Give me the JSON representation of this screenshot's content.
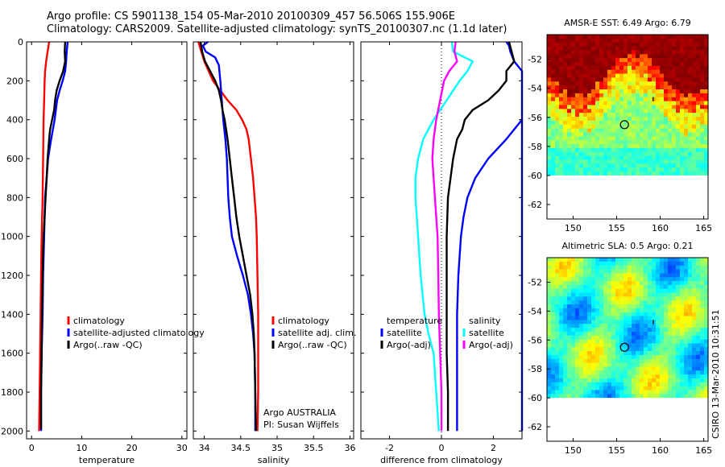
{
  "figure": {
    "title_line1": "Argo profile: CS 5901138_154 05-Mar-2010 20100309_457 56.506S 155.906E",
    "title_line2": "Climatology: CARS2009. Satellite-adjusted climatology: synTS_20100307.nc (1.1d later)",
    "stamp": "CSIRO 13-Mar-2010 10:31:51",
    "colors": {
      "red": "#ff0000",
      "blue": "#0000ff",
      "black": "#000000",
      "cyan": "#00ffff",
      "magenta": "#ff00ff"
    }
  },
  "chart_data": [
    {
      "id": "temperature",
      "type": "line",
      "xlabel": "temperature",
      "xlim": [
        -1,
        31
      ],
      "xticks": [
        0,
        10,
        20,
        30
      ],
      "ylim": [
        2040,
        0
      ],
      "yticks": [
        0,
        200,
        400,
        600,
        800,
        1000,
        1200,
        1400,
        1600,
        1800,
        2000
      ],
      "legend": {
        "position": "lower-right",
        "entries": [
          {
            "label": "climatology",
            "color": "red"
          },
          {
            "label": "satellite-adjusted climatology",
            "color": "blue"
          },
          {
            "label": "Argo(..raw -QC)",
            "color": "black"
          }
        ]
      },
      "series": [
        {
          "name": "climatology",
          "color": "red",
          "points": [
            [
              3.5,
              0
            ],
            [
              3.2,
              50
            ],
            [
              2.9,
              100
            ],
            [
              2.7,
              150
            ],
            [
              2.6,
              200
            ],
            [
              2.5,
              300
            ],
            [
              2.4,
              400
            ],
            [
              2.3,
              600
            ],
            [
              2.2,
              800
            ],
            [
              2.0,
              1000
            ],
            [
              1.9,
              1200
            ],
            [
              1.8,
              1400
            ],
            [
              1.7,
              1600
            ],
            [
              1.6,
              1800
            ],
            [
              1.5,
              2000
            ]
          ]
        },
        {
          "name": "satellite-adjusted climatology",
          "color": "blue",
          "points": [
            [
              7.2,
              0
            ],
            [
              7.0,
              50
            ],
            [
              6.9,
              100
            ],
            [
              6.7,
              150
            ],
            [
              6.2,
              200
            ],
            [
              5.6,
              250
            ],
            [
              5.1,
              300
            ],
            [
              4.6,
              400
            ],
            [
              3.9,
              500
            ],
            [
              3.3,
              600
            ],
            [
              3.0,
              700
            ],
            [
              2.7,
              800
            ],
            [
              2.5,
              1000
            ],
            [
              2.3,
              1200
            ],
            [
              2.2,
              1400
            ],
            [
              2.0,
              1600
            ],
            [
              1.9,
              1800
            ],
            [
              1.9,
              2000
            ]
          ]
        },
        {
          "name": "Argo(..raw -QC)",
          "color": "black",
          "points": [
            [
              6.7,
              0
            ],
            [
              6.6,
              50
            ],
            [
              6.7,
              100
            ],
            [
              6.3,
              150
            ],
            [
              5.6,
              200
            ],
            [
              5.0,
              250
            ],
            [
              4.7,
              300
            ],
            [
              4.5,
              350
            ],
            [
              4.1,
              400
            ],
            [
              3.7,
              450
            ],
            [
              3.5,
              500
            ],
            [
              3.2,
              600
            ],
            [
              3.0,
              700
            ],
            [
              2.8,
              800
            ],
            [
              2.6,
              900
            ],
            [
              2.4,
              1000
            ],
            [
              2.2,
              1200
            ],
            [
              2.1,
              1400
            ],
            [
              2.0,
              1600
            ],
            [
              1.9,
              1800
            ],
            [
              1.9,
              1990
            ]
          ]
        }
      ]
    },
    {
      "id": "salinity",
      "type": "line",
      "xlabel": "salinity",
      "xlim": [
        33.85,
        36.05
      ],
      "xticks": [
        34,
        34.5,
        35,
        35.5,
        36
      ],
      "ylim": [
        2040,
        0
      ],
      "legend": {
        "position": "lower-right",
        "entries": [
          {
            "label": "climatology",
            "color": "red"
          },
          {
            "label": "satellite adj. clim.",
            "color": "blue"
          },
          {
            "label": "Argo(..raw -QC)",
            "color": "black"
          }
        ]
      },
      "annotation_line1": "Argo AUSTRALIA",
      "annotation_line2": "PI: Susan Wijffels",
      "series": [
        {
          "name": "climatology",
          "color": "red",
          "points": [
            [
              33.92,
              0
            ],
            [
              33.96,
              50
            ],
            [
              34.0,
              100
            ],
            [
              34.06,
              150
            ],
            [
              34.12,
              200
            ],
            [
              34.22,
              250
            ],
            [
              34.32,
              300
            ],
            [
              34.44,
              350
            ],
            [
              34.52,
              400
            ],
            [
              34.58,
              450
            ],
            [
              34.61,
              500
            ],
            [
              34.64,
              600
            ],
            [
              34.67,
              700
            ],
            [
              34.69,
              800
            ],
            [
              34.71,
              900
            ],
            [
              34.72,
              1000
            ],
            [
              34.73,
              1200
            ],
            [
              34.74,
              1400
            ],
            [
              34.74,
              1600
            ],
            [
              34.74,
              1800
            ],
            [
              34.73,
              2000
            ]
          ]
        },
        {
          "name": "satellite adj. clim.",
          "color": "blue",
          "points": [
            [
              34.05,
              0
            ],
            [
              33.98,
              20
            ],
            [
              34.02,
              50
            ],
            [
              34.15,
              80
            ],
            [
              34.2,
              120
            ],
            [
              34.22,
              200
            ],
            [
              34.24,
              300
            ],
            [
              34.26,
              400
            ],
            [
              34.29,
              500
            ],
            [
              34.31,
              600
            ],
            [
              34.32,
              700
            ],
            [
              34.33,
              800
            ],
            [
              34.35,
              900
            ],
            [
              34.38,
              1000
            ],
            [
              34.45,
              1100
            ],
            [
              34.53,
              1200
            ],
            [
              34.6,
              1300
            ],
            [
              34.64,
              1400
            ],
            [
              34.67,
              1500
            ],
            [
              34.69,
              1600
            ],
            [
              34.7,
              1800
            ],
            [
              34.7,
              2000
            ]
          ]
        },
        {
          "name": "Argo(..raw -QC)",
          "color": "black",
          "points": [
            [
              33.95,
              0
            ],
            [
              33.97,
              50
            ],
            [
              34.01,
              100
            ],
            [
              34.08,
              150
            ],
            [
              34.15,
              200
            ],
            [
              34.2,
              250
            ],
            [
              34.23,
              300
            ],
            [
              34.25,
              350
            ],
            [
              34.28,
              400
            ],
            [
              34.3,
              450
            ],
            [
              34.32,
              500
            ],
            [
              34.35,
              600
            ],
            [
              34.38,
              700
            ],
            [
              34.41,
              800
            ],
            [
              34.44,
              900
            ],
            [
              34.48,
              1000
            ],
            [
              34.53,
              1100
            ],
            [
              34.58,
              1200
            ],
            [
              34.63,
              1300
            ],
            [
              34.66,
              1400
            ],
            [
              34.68,
              1500
            ],
            [
              34.69,
              1600
            ],
            [
              34.7,
              1800
            ],
            [
              34.71,
              2000
            ]
          ]
        }
      ]
    },
    {
      "id": "difference",
      "type": "line",
      "xlabel": "difference from climatology",
      "xlim": [
        -3.1,
        3.1
      ],
      "xticks": [
        -2,
        0,
        2
      ],
      "ylim": [
        2040,
        0
      ],
      "zero_line": "dotted",
      "legend": {
        "position": "lower-center",
        "group1_title": "temperature",
        "group2_title": "salinity",
        "entries": [
          {
            "label": "satellite",
            "color": "blue",
            "group": "temperature"
          },
          {
            "label": "Argo(-adj)",
            "color": "black",
            "group": "temperature"
          },
          {
            "label": "satellite",
            "color": "cyan",
            "group": "salinity"
          },
          {
            "label": "Argo(-adj)",
            "color": "magenta",
            "group": "salinity"
          }
        ]
      },
      "series": [
        {
          "name": "satellite",
          "color": "blue",
          "group": "temperature",
          "points": [
            [
              2.5,
              0
            ],
            [
              2.6,
              20
            ],
            [
              2.65,
              50
            ],
            [
              2.8,
              100
            ],
            [
              3.1,
              150
            ],
            [
              3.1,
              2000
            ]
          ]
        },
        {
          "name": "satellite",
          "color": "cyan",
          "group": "salinity",
          "points": [
            [
              0.4,
              0
            ],
            [
              0.45,
              50
            ],
            [
              1.2,
              100
            ],
            [
              1.0,
              150
            ],
            [
              0.7,
              200
            ],
            [
              0.2,
              300
            ],
            [
              -0.3,
              400
            ],
            [
              -0.7,
              500
            ],
            [
              -0.9,
              600
            ],
            [
              -1.0,
              700
            ],
            [
              -1.0,
              800
            ],
            [
              -0.95,
              900
            ],
            [
              -0.9,
              1000
            ],
            [
              -0.8,
              1200
            ],
            [
              -0.65,
              1400
            ],
            [
              -0.5,
              1500
            ],
            [
              -0.3,
              1600
            ],
            [
              -0.2,
              1800
            ],
            [
              -0.1,
              2000
            ]
          ]
        },
        {
          "name": "Argo(-adj)",
          "color": "magenta",
          "group": "salinity",
          "points": [
            [
              0.55,
              0
            ],
            [
              0.5,
              50
            ],
            [
              0.6,
              100
            ],
            [
              0.3,
              150
            ],
            [
              0.1,
              200
            ],
            [
              -0.05,
              300
            ],
            [
              -0.2,
              400
            ],
            [
              -0.3,
              500
            ],
            [
              -0.35,
              600
            ],
            [
              -0.3,
              700
            ],
            [
              -0.25,
              800
            ],
            [
              -0.2,
              900
            ],
            [
              -0.15,
              1000
            ],
            [
              -0.12,
              1200
            ],
            [
              -0.1,
              1400
            ],
            [
              -0.05,
              1600
            ],
            [
              0.0,
              1800
            ],
            [
              0.0,
              2000
            ]
          ]
        },
        {
          "name": "Argo(-adj)",
          "color": "black",
          "group": "temperature",
          "points": [
            [
              2.6,
              0
            ],
            [
              2.8,
              100
            ],
            [
              2.5,
              150
            ],
            [
              2.5,
              200
            ],
            [
              2.2,
              250
            ],
            [
              1.8,
              300
            ],
            [
              1.2,
              350
            ],
            [
              0.9,
              400
            ],
            [
              0.8,
              450
            ],
            [
              0.6,
              500
            ],
            [
              0.45,
              600
            ],
            [
              0.35,
              700
            ],
            [
              0.25,
              800
            ],
            [
              0.2,
              1000
            ],
            [
              0.2,
              1200
            ],
            [
              0.2,
              1400
            ],
            [
              0.2,
              1600
            ],
            [
              0.25,
              1800
            ],
            [
              0.25,
              2000
            ]
          ]
        },
        {
          "name": "satellite",
          "color": "blue",
          "group": "temperature",
          "points": [
            [
              3.1,
              400
            ],
            [
              2.5,
              500
            ],
            [
              1.8,
              600
            ],
            [
              1.3,
              700
            ],
            [
              1.0,
              800
            ],
            [
              0.85,
              900
            ],
            [
              0.75,
              1000
            ],
            [
              0.65,
              1200
            ],
            [
              0.6,
              1400
            ],
            [
              0.6,
              1600
            ],
            [
              0.6,
              1800
            ],
            [
              0.6,
              2000
            ]
          ]
        }
      ]
    },
    {
      "id": "sst_map",
      "type": "heatmap",
      "title": "AMSR-E SST: 6.49 Argo: 6.79",
      "xlim": [
        147,
        165.5
      ],
      "ylim": [
        -63,
        -50.3
      ],
      "xticks": [
        150,
        155,
        160,
        165
      ],
      "yticks": [
        -52,
        -54,
        -56,
        -58,
        -60,
        -62
      ],
      "data_ylim": [
        -63,
        -60
      ],
      "marker": {
        "lon": 155.9,
        "lat": -56.5
      }
    },
    {
      "id": "sla_map",
      "type": "heatmap",
      "title": "Altimetric SLA: 0.5 Argo: 0.21",
      "xlim": [
        147,
        165.5
      ],
      "ylim": [
        -63,
        -50.3
      ],
      "xticks": [
        150,
        155,
        160,
        165
      ],
      "yticks": [
        -52,
        -54,
        -56,
        -58,
        -60,
        -62
      ],
      "data_ylim": [
        -63,
        -60
      ],
      "marker": {
        "lon": 155.9,
        "lat": -56.5
      }
    }
  ]
}
